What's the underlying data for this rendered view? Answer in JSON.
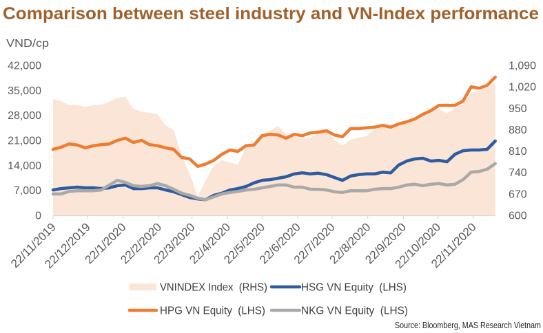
{
  "chart_data": {
    "type": "line",
    "title": "Comparison between steel industry and VN-Index performance",
    "ylabel_left": "VND/cp",
    "ylabel_right": "",
    "xlabel": "",
    "grid": false,
    "legend_placement": "bottom",
    "y_left": {
      "min": 0,
      "max": 42000,
      "ticks": [
        0,
        7000,
        14000,
        21000,
        28000,
        35000,
        42000
      ],
      "tick_labels": [
        "0",
        "7,000",
        "14,000",
        "21,000",
        "28,000",
        "35,000",
        "42,000"
      ]
    },
    "y_right": {
      "min": 600,
      "max": 1090,
      "ticks": [
        600,
        670,
        740,
        810,
        880,
        950,
        1020,
        1090
      ],
      "tick_labels": [
        "600",
        "670",
        "740",
        "810",
        "880",
        "950",
        "1,020",
        "1,090"
      ]
    },
    "x_ticks": [
      "22/11/2019",
      "22/12/2019",
      "22/1/2020",
      "22/2/2020",
      "22/3/2020",
      "22/4/2020",
      "22/5/2020",
      "22/6/2020",
      "22/7/2020",
      "22/8/2020",
      "22/9/2020",
      "22/10/2020",
      "22/11/2020"
    ],
    "x_range": [
      "22/11/2019",
      "11/12/2020"
    ],
    "dates": [
      "22/11/2019",
      "29/11/2019",
      "06/12/2019",
      "13/12/2019",
      "20/12/2019",
      "27/12/2019",
      "03/01/2020",
      "10/01/2020",
      "17/01/2020",
      "24/01/2020",
      "31/01/2020",
      "07/02/2020",
      "14/02/2020",
      "21/02/2020",
      "28/02/2020",
      "06/03/2020",
      "13/03/2020",
      "20/03/2020",
      "27/03/2020",
      "03/04/2020",
      "10/04/2020",
      "17/04/2020",
      "24/04/2020",
      "01/05/2020",
      "08/05/2020",
      "15/05/2020",
      "22/05/2020",
      "29/05/2020",
      "05/06/2020",
      "12/06/2020",
      "19/06/2020",
      "26/06/2020",
      "03/07/2020",
      "10/07/2020",
      "17/07/2020",
      "24/07/2020",
      "31/07/2020",
      "07/08/2020",
      "14/08/2020",
      "21/08/2020",
      "28/08/2020",
      "04/09/2020",
      "11/09/2020",
      "18/09/2020",
      "25/09/2020",
      "02/10/2020",
      "09/10/2020",
      "16/10/2020",
      "23/10/2020",
      "30/10/2020",
      "06/11/2020",
      "13/11/2020",
      "20/11/2020",
      "27/11/2020",
      "04/12/2020",
      "11/12/2020"
    ],
    "series": [
      {
        "name": "VNINDEX Index (RHS)",
        "key": "vnindex",
        "axis": "right",
        "mark": "area",
        "color": "#FBE5D6",
        "values": [
          980,
          973,
          960,
          960,
          955,
          960,
          962,
          971,
          984,
          987,
          948,
          939,
          935,
          930,
          894,
          879,
          796,
          735,
          663,
          715,
          762,
          780,
          773,
          766,
          820,
          836,
          865,
          877,
          892,
          865,
          859,
          850,
          854,
          870,
          877,
          847,
          827,
          847,
          854,
          859,
          881,
          892,
          888,
          894,
          910,
          919,
          930,
          939,
          948,
          933,
          951,
          964,
          1000,
          1007,
          1016,
          1034
        ]
      },
      {
        "name": "HPG VN Equity (LHS)",
        "key": "hpg",
        "axis": "left",
        "mark": "line",
        "color": "#ED7D31",
        "values": [
          18500,
          19100,
          20000,
          19700,
          18900,
          19500,
          19800,
          20000,
          21000,
          21600,
          20400,
          21000,
          19800,
          19500,
          18900,
          18500,
          16200,
          15800,
          13700,
          14400,
          15400,
          17100,
          18300,
          17900,
          19500,
          19700,
          22300,
          22700,
          22500,
          21600,
          22700,
          22300,
          23100,
          23300,
          23700,
          22500,
          22000,
          24300,
          24300,
          24500,
          24700,
          25200,
          24700,
          25600,
          26200,
          27000,
          28300,
          29300,
          30800,
          30800,
          30800,
          32000,
          36000,
          35600,
          36400,
          38700
        ]
      },
      {
        "name": "HSG VN Equity (LHS)",
        "key": "hsg",
        "axis": "left",
        "mark": "line",
        "color": "#2E5C9E",
        "values": [
          7100,
          7500,
          7700,
          7900,
          7700,
          7700,
          7500,
          7700,
          8300,
          8500,
          7500,
          7500,
          7700,
          7700,
          7100,
          6600,
          5800,
          5000,
          4600,
          4400,
          5600,
          6200,
          7100,
          7500,
          8100,
          9100,
          9800,
          10000,
          10400,
          10800,
          11600,
          11900,
          11600,
          11800,
          11400,
          10600,
          9800,
          11000,
          11400,
          11600,
          11600,
          12100,
          11900,
          14100,
          15200,
          15800,
          16000,
          15200,
          15400,
          15000,
          17100,
          18100,
          18300,
          18300,
          18500,
          20800
        ]
      },
      {
        "name": "NKG VN Equity (LHS)",
        "key": "nkg",
        "axis": "left",
        "mark": "line",
        "color": "#A9A9A9",
        "values": [
          6000,
          6000,
          6700,
          6900,
          6900,
          6900,
          7100,
          8500,
          9800,
          9200,
          8300,
          8100,
          8300,
          8900,
          8300,
          7300,
          6200,
          5600,
          4800,
          4400,
          5200,
          6000,
          6400,
          6700,
          7100,
          7300,
          7700,
          8100,
          8500,
          8500,
          7900,
          7900,
          7300,
          7300,
          7100,
          6600,
          6400,
          6900,
          6900,
          6900,
          7300,
          7500,
          7500,
          7900,
          8500,
          8700,
          8300,
          8700,
          8900,
          8500,
          8700,
          10000,
          12100,
          12300,
          12900,
          14500
        ]
      }
    ],
    "legend": [
      {
        "label": "VNINDEX Index  (RHS)",
        "series": "vnindex"
      },
      {
        "label": "HSG VN Equity  (LHS)",
        "series": "hsg"
      },
      {
        "label": "HPG VN Equity  (LHS)",
        "series": "hpg"
      },
      {
        "label": "NKG VN Equity  (LHS)",
        "series": "nkg"
      }
    ],
    "source_note": "Source: Bloomberg, MAS Research Vietnam"
  },
  "colors": {
    "title": "#A0602B",
    "axis_text": "#595959",
    "axis_line": "#D9D9D9"
  }
}
